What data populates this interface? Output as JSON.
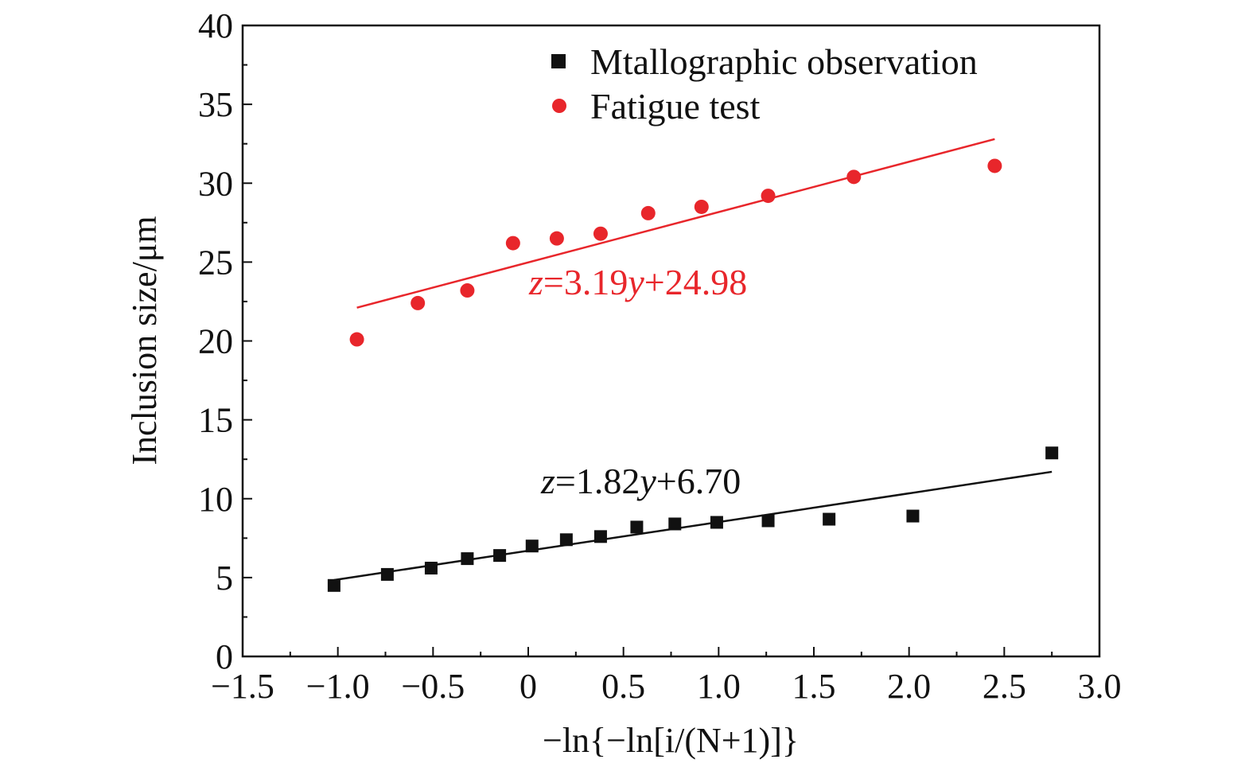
{
  "chart_data": {
    "type": "scatter",
    "title": "",
    "xlabel": "−ln{−ln[i/(N+1)]}",
    "ylabel": "Inclusion size/μm",
    "xlim": [
      -1.5,
      3.0
    ],
    "ylim": [
      0,
      40
    ],
    "xticks": [
      -1.5,
      -1.0,
      -0.5,
      0,
      0.5,
      1.0,
      1.5,
      2.0,
      2.5,
      3.0
    ],
    "xtick_labels": [
      "−1.5",
      "−1.0",
      "−0.5",
      "0",
      "0.5",
      "1.0",
      "1.5",
      "2.0",
      "2.5",
      "3.0"
    ],
    "yticks": [
      0,
      5,
      10,
      15,
      20,
      25,
      30,
      35,
      40
    ],
    "ytick_labels": [
      "0",
      "5",
      "10",
      "15",
      "20",
      "25",
      "30",
      "35",
      "40"
    ],
    "grid": false,
    "legend_position": "top-right",
    "series": [
      {
        "name": "Mtallographic observation",
        "marker": "square",
        "color": "#111111",
        "x": [
          -1.02,
          -0.74,
          -0.51,
          -0.32,
          -0.15,
          0.02,
          0.2,
          0.38,
          0.57,
          0.77,
          0.99,
          1.26,
          1.58,
          2.02,
          2.75
        ],
        "y": [
          4.5,
          5.2,
          5.6,
          6.2,
          6.4,
          7.0,
          7.4,
          7.6,
          8.2,
          8.4,
          8.5,
          8.6,
          8.7,
          8.9,
          12.9
        ],
        "fit": {
          "slope": 1.82,
          "intercept": 6.7,
          "x_range": [
            -1.02,
            2.75
          ],
          "equation": {
            "z": "z",
            "rhs1": "=1.82",
            "y": "y",
            "rhs2": "+6.70"
          }
        }
      },
      {
        "name": "Fatigue test",
        "marker": "circle",
        "color": "#e8262b",
        "x": [
          -0.9,
          -0.58,
          -0.32,
          -0.08,
          0.15,
          0.38,
          0.63,
          0.91,
          1.26,
          1.71,
          2.45
        ],
        "y": [
          20.1,
          22.4,
          23.2,
          26.2,
          26.5,
          26.8,
          28.1,
          28.5,
          29.2,
          30.4,
          31.1
        ],
        "fit": {
          "slope": 3.19,
          "intercept": 24.98,
          "x_range": [
            -0.9,
            2.45
          ],
          "equation": {
            "z": "z",
            "rhs1": "=3.19",
            "y": "y",
            "rhs2": "+24.98"
          }
        }
      }
    ]
  }
}
